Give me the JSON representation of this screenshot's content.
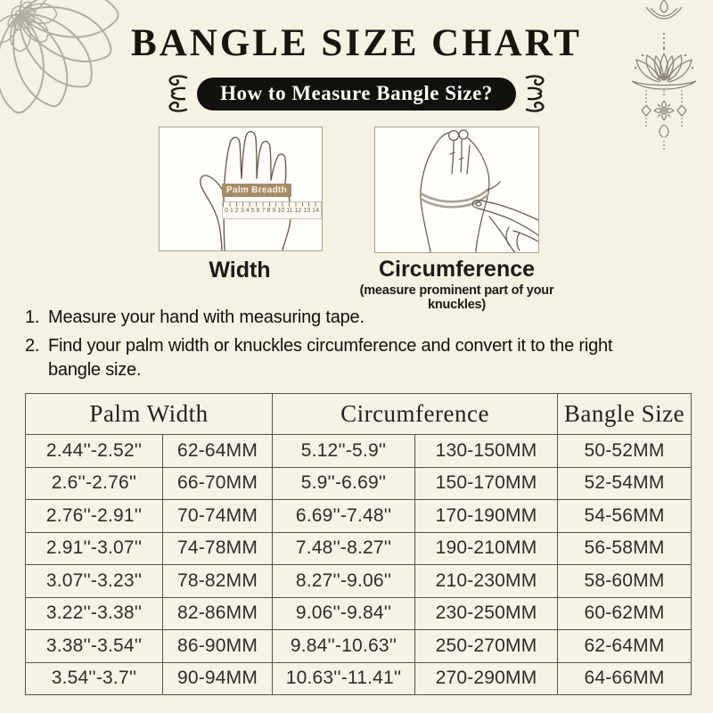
{
  "page": {
    "title": "BANGLE SIZE CHART",
    "banner": "How to Measure Bangle Size?"
  },
  "diagrams": {
    "width": {
      "caption": "Width",
      "ruler_label": "Palm Breadth",
      "ruler_numbers": [
        "0",
        "1",
        "2",
        "3",
        "4",
        "5",
        "6",
        "7",
        "8",
        "9",
        "10",
        "11",
        "12",
        "13",
        "14"
      ]
    },
    "circumference": {
      "caption": "Circumference",
      "subcaption": "(measure prominent part of your knuckles)"
    }
  },
  "instructions": [
    {
      "num": "1.",
      "text": "Measure your hand with measuring tape."
    },
    {
      "num": "2.",
      "text": "Find your palm width or knuckles circumference and convert it to the right bangle size."
    }
  ],
  "table": {
    "headers": [
      {
        "label": "Palm Width",
        "colspan": 2
      },
      {
        "label": "Circumference",
        "colspan": 2
      },
      {
        "label": "Bangle Size",
        "colspan": 1
      }
    ],
    "rows": [
      [
        "2.44''-2.52''",
        "62-64MM",
        "5.12''-5.9''",
        "130-150MM",
        "50-52MM"
      ],
      [
        "2.6''-2.76''",
        "66-70MM",
        "5.9''-6.69''",
        "150-170MM",
        "52-54MM"
      ],
      [
        "2.76''-2.91''",
        "70-74MM",
        "6.69''-7.48''",
        "170-190MM",
        "54-56MM"
      ],
      [
        "2.91''-3.07''",
        "74-78MM",
        "7.48''-8.27''",
        "190-210MM",
        "56-58MM"
      ],
      [
        "3.07''-3.23''",
        "78-82MM",
        "8.27''-9.06''",
        "210-230MM",
        "58-60MM"
      ],
      [
        "3.22''-3.38''",
        "82-86MM",
        "9.06''-9.84''",
        "230-250MM",
        "60-62MM"
      ],
      [
        "3.38''-3.54''",
        "86-90MM",
        "9.84''-10.63''",
        "250-270MM",
        "62-64MM"
      ],
      [
        "3.54''-3.7''",
        "90-94MM",
        "10.63''-11.41''",
        "270-290MM",
        "64-66MM"
      ]
    ]
  },
  "colors": {
    "background": "#f5f1e3",
    "banner_bg": "#13110d",
    "banner_text": "#fdfcf7",
    "ruler_label_bg": "#a68d68",
    "table_border": "#55534c",
    "ornament_gray": "#b0aba0"
  }
}
